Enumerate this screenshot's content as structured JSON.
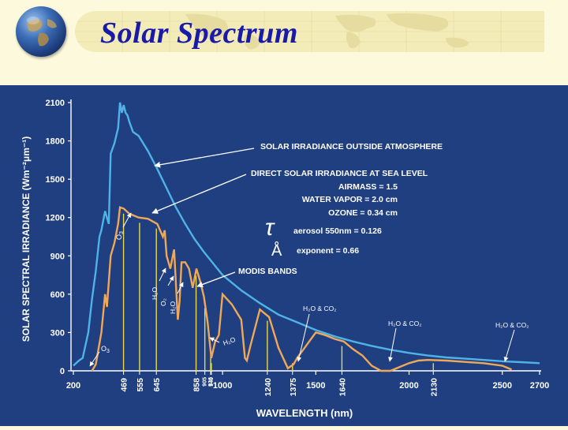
{
  "header": {
    "title": "Solar Spectrum",
    "globe_icon": "globe-icon"
  },
  "colors": {
    "background": "#1f3f80",
    "outside_curve": "#4fb3e8",
    "sea_level_curve": "#f0a858",
    "modis_bands": "#e8d84a",
    "text": "#ffffff",
    "title": "#1a1aa8"
  },
  "chart_data": {
    "type": "line",
    "xlabel": "WAVELENGTH (nm)",
    "ylabel": "SOLAR SPECTRAL IRRADIANCE (Wm⁻²μm⁻¹)",
    "xlim": [
      200,
      2700
    ],
    "ylim": [
      0,
      2100
    ],
    "y_ticks": [
      "0",
      "300",
      "600",
      "900",
      "1200",
      "1500",
      "1800",
      "2100"
    ],
    "x_ticks_major": [
      "200",
      "1000",
      "1500",
      "2000",
      "2500",
      "2700"
    ],
    "x_ticks_bands": [
      {
        "x": 469,
        "label": "469"
      },
      {
        "x": 555,
        "label": "555"
      },
      {
        "x": 645,
        "label": "645"
      },
      {
        "x": 858,
        "label": "858"
      },
      {
        "x": 905,
        "label": "905"
      },
      {
        "x": 936,
        "label": "936"
      },
      {
        "x": 940,
        "label": "940"
      },
      {
        "x": 1240,
        "label": "1240"
      },
      {
        "x": 1375,
        "label": "1375"
      },
      {
        "x": 1640,
        "label": "1640"
      },
      {
        "x": 2130,
        "label": "2130"
      }
    ],
    "series": [
      {
        "name": "SOLAR IRRADIANCE OUTSIDE ATMOSPHERE",
        "x": [
          200,
          230,
          250,
          280,
          300,
          320,
          340,
          350,
          370,
          390,
          400,
          420,
          440,
          450,
          460,
          470,
          480,
          490,
          500,
          520,
          550,
          600,
          650,
          700,
          750,
          800,
          850,
          900,
          950,
          1000,
          1100,
          1200,
          1300,
          1400,
          1500,
          1600,
          1700,
          1800,
          1900,
          2000,
          2100,
          2200,
          2300,
          2400,
          2500,
          2600,
          2700
        ],
        "y": [
          40,
          80,
          100,
          300,
          560,
          780,
          1050,
          1100,
          1250,
          1150,
          1700,
          1780,
          1900,
          2100,
          2020,
          2080,
          2020,
          2000,
          1950,
          1870,
          1840,
          1720,
          1580,
          1430,
          1280,
          1150,
          1030,
          930,
          840,
          750,
          630,
          530,
          440,
          380,
          320,
          270,
          230,
          195,
          165,
          140,
          120,
          105,
          95,
          85,
          75,
          68,
          60
        ]
      },
      {
        "name": "DIRECT SOLAR IRRADIANCE AT SEA LEVEL",
        "x": [
          300,
          320,
          350,
          370,
          380,
          400,
          420,
          440,
          450,
          470,
          500,
          550,
          600,
          650,
          680,
          690,
          700,
          720,
          740,
          760,
          770,
          780,
          800,
          820,
          840,
          860,
          880,
          900,
          920,
          940,
          960,
          980,
          1000,
          1050,
          1100,
          1120,
          1130,
          1150,
          1200,
          1250,
          1300,
          1350,
          1380,
          1400,
          1450,
          1500,
          1550,
          1600,
          1650,
          1700,
          1750,
          1800,
          1850,
          1900,
          1950,
          2000,
          2050,
          2100,
          2200,
          2300,
          2400,
          2500,
          2550
        ],
        "y": [
          0,
          50,
          300,
          600,
          500,
          900,
          1000,
          1150,
          1280,
          1270,
          1230,
          1200,
          1190,
          1150,
          1050,
          1100,
          900,
          800,
          950,
          400,
          550,
          850,
          850,
          800,
          650,
          800,
          700,
          580,
          380,
          100,
          230,
          280,
          600,
          520,
          400,
          100,
          80,
          200,
          480,
          420,
          180,
          20,
          50,
          100,
          200,
          300,
          280,
          250,
          230,
          170,
          120,
          40,
          0,
          0,
          30,
          60,
          80,
          85,
          80,
          70,
          60,
          40,
          10
        ]
      }
    ],
    "annotations": [
      "SOLAR IRRADIANCE OUTSIDE ATMOSPHERE",
      "DIRECT SOLAR IRRADIANCE AT SEA LEVEL",
      "AIRMASS = 1.5",
      "WATER VAPOR = 2.0 cm",
      "OZONE = 0.34 cm",
      "aerosol 550nm = 0.126",
      "exponent = 0.66",
      "MODIS BANDS",
      "O3",
      "H2O",
      "O2",
      "H2O & CO2"
    ]
  },
  "labels": {
    "ann_outside": "SOLAR IRRADIANCE OUTSIDE ATMOSPHERE",
    "ann_sea": "DIRECT SOLAR IRRADIANCE AT SEA LEVEL",
    "ann_airmass": "AIRMASS = 1.5",
    "ann_water": "WATER VAPOR = 2.0 cm",
    "ann_ozone": "OZONE = 0.34 cm",
    "tau_symbol": "τ",
    "ann_aerosol": "aerosol 550nm = 0.126",
    "angstrom_symbol": "Å",
    "ann_exponent": "exponent = 0.66",
    "ann_modis": "MODIS BANDS",
    "o3": "O",
    "o3_sub": "3",
    "h2o": "H₂O",
    "o2": "O₂",
    "h2o_co2": "H₂O & CO₂"
  }
}
